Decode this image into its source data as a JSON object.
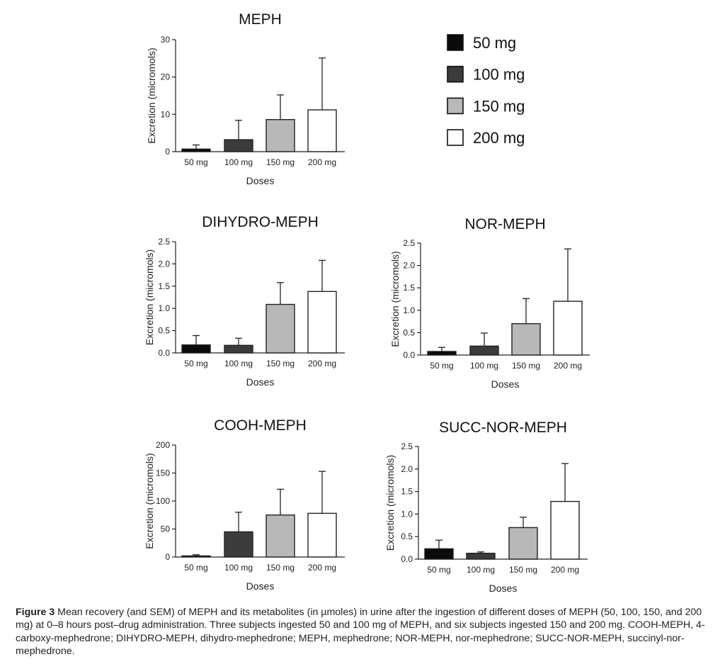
{
  "chart_data": [
    {
      "type": "bar",
      "title": "MEPH",
      "xlabel": "Doses",
      "ylabel": "Excretion (micromols)",
      "categories": [
        "50 mg",
        "100 mg",
        "150 mg",
        "200 mg"
      ],
      "values": [
        0.7,
        3.2,
        8.6,
        11.2
      ],
      "error_upper": [
        1.8,
        8.4,
        15.2,
        25.1
      ],
      "ylim": [
        0,
        30
      ],
      "yticks": [
        0,
        10,
        20,
        30
      ],
      "ytick_labels": [
        "0",
        "10",
        "20",
        "30"
      ]
    },
    {
      "type": "bar",
      "title": "DIHYDRO-MEPH",
      "xlabel": "Doses",
      "ylabel": "Excretion (micromols)",
      "categories": [
        "50 mg",
        "100 mg",
        "150 mg",
        "200 mg"
      ],
      "values": [
        0.18,
        0.17,
        1.09,
        1.38
      ],
      "error_upper": [
        0.39,
        0.33,
        1.58,
        2.08
      ],
      "ylim": [
        0,
        2.5
      ],
      "yticks": [
        0,
        0.5,
        1.0,
        1.5,
        2.0,
        2.5
      ],
      "ytick_labels": [
        "0.0",
        "0.5",
        "1.0",
        "1.5",
        "2.0",
        "2.5"
      ]
    },
    {
      "type": "bar",
      "title": "NOR-MEPH",
      "xlabel": "Doses",
      "ylabel": "Excretion (micromols)",
      "categories": [
        "50 mg",
        "100 mg",
        "150 mg",
        "200 mg"
      ],
      "values": [
        0.08,
        0.2,
        0.7,
        1.2
      ],
      "error_upper": [
        0.17,
        0.49,
        1.26,
        2.37
      ],
      "ylim": [
        0,
        2.5
      ],
      "yticks": [
        0,
        0.5,
        1.0,
        1.5,
        2.0,
        2.5
      ],
      "ytick_labels": [
        "0.0",
        "0.5",
        "1.0",
        "1.5",
        "2.0",
        "2.5"
      ]
    },
    {
      "type": "bar",
      "title": "COOH-MEPH",
      "xlabel": "Doses",
      "ylabel": "Excretion (micromols)",
      "categories": [
        "50 mg",
        "100 mg",
        "150 mg",
        "200 mg"
      ],
      "values": [
        2,
        45,
        75,
        78
      ],
      "error_upper": [
        4,
        80,
        121,
        153
      ],
      "ylim": [
        0,
        200
      ],
      "yticks": [
        0,
        50,
        100,
        150,
        200
      ],
      "ytick_labels": [
        "0",
        "50",
        "100",
        "150",
        "200"
      ]
    },
    {
      "type": "bar",
      "title": "SUCC-NOR-MEPH",
      "xlabel": "Doses",
      "ylabel": "Excretion (micromols)",
      "categories": [
        "50 mg",
        "100 mg",
        "150 mg",
        "200 mg"
      ],
      "values": [
        0.23,
        0.13,
        0.7,
        1.28
      ],
      "error_upper": [
        0.42,
        0.16,
        0.93,
        2.12
      ],
      "ylim": [
        0,
        2.5
      ],
      "yticks": [
        0,
        0.5,
        1.0,
        1.5,
        2.0,
        2.5
      ],
      "ytick_labels": [
        "0.0",
        "0.5",
        "1.0",
        "1.5",
        "2.0",
        "2.5"
      ]
    }
  ],
  "legend": {
    "placement": "top-right",
    "items": [
      {
        "label": "50 mg",
        "color": "#0b0b0b"
      },
      {
        "label": "100 mg",
        "color": "#3b3b3b"
      },
      {
        "label": "150 mg",
        "color": "#b8b8b8"
      },
      {
        "label": "200 mg",
        "color": "#ffffff"
      }
    ]
  },
  "bar_colors": [
    "#0b0b0b",
    "#3b3b3b",
    "#b8b8b8",
    "#ffffff"
  ],
  "caption": {
    "label": "Figure 3",
    "text": " Mean recovery (and SEM) of MEPH and its metabolites (in µmoles) in urine after the ingestion of different doses of MEPH (50, 100, 150, and 200 mg) at 0–8 hours post–drug administration. Three subjects ingested 50 and 100 mg of MEPH, and six subjects ingested 150 and 200 mg. COOH-MEPH, 4-carboxy-mephedrone; DIHYDRO-MEPH, dihydro-mephedrone; MEPH, mephedrone; NOR-MEPH, nor-mephedrone; SUCC-NOR-MEPH, succinyl-nor-mephedrone."
  }
}
